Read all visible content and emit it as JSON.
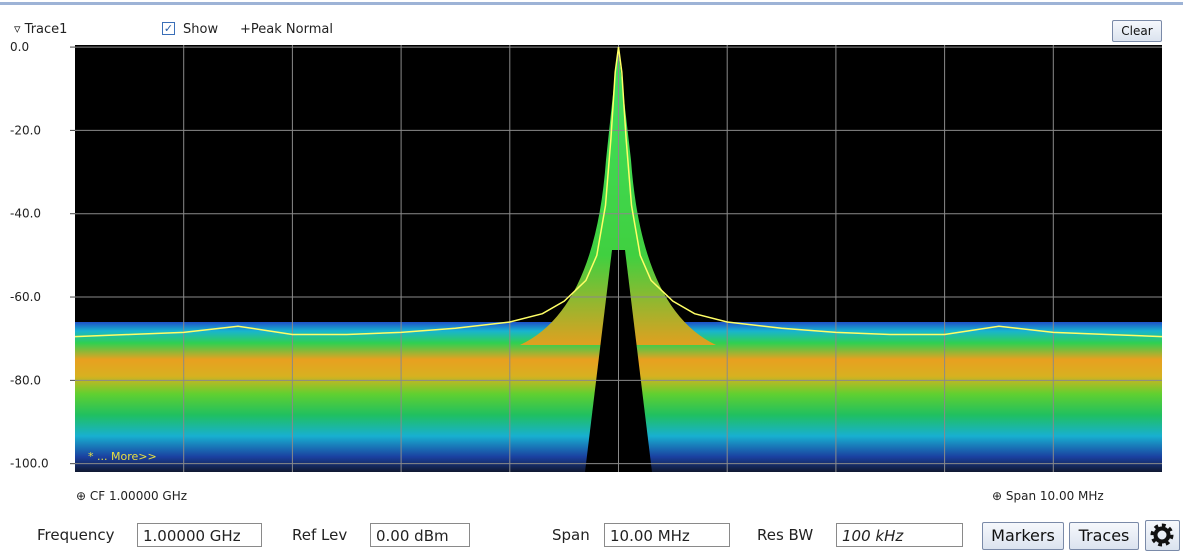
{
  "header": {
    "trace": "Trace1",
    "show": "Show",
    "mode": "+Peak Normal",
    "clear": "Clear"
  },
  "chart_data": {
    "type": "line",
    "annotation": "* ... More>>",
    "xlim": [
      995,
      1005
    ],
    "ylim": [
      -102,
      0.5
    ],
    "yticks": [
      {
        "value": 0,
        "label": "0.0"
      },
      {
        "value": -20,
        "label": "-20.0"
      },
      {
        "value": -40,
        "label": "-40.0"
      },
      {
        "value": -60,
        "label": "-60.0"
      },
      {
        "value": -80,
        "label": "-80.0"
      },
      {
        "value": -100,
        "label": "-100.0"
      }
    ],
    "grid": true,
    "x": [
      995,
      995.5,
      996,
      996.5,
      997,
      997.5,
      998,
      998.5,
      999,
      999.3,
      999.5,
      999.7,
      999.8,
      999.88,
      999.93,
      999.97,
      1000,
      1000.03,
      1000.07,
      1000.12,
      1000.2,
      1000.3,
      1000.5,
      1000.7,
      1001,
      1001.5,
      1002,
      1002.5,
      1003,
      1003.5,
      1004,
      1004.5,
      1005
    ],
    "series": [
      {
        "color": "#ffff66",
        "values": [
          -69.5,
          -69,
          -68.5,
          -67,
          -69,
          -69,
          -68.5,
          -67.5,
          -66,
          -64,
          -61,
          -56,
          -50,
          -38,
          -22,
          -6,
          0,
          -6,
          -22,
          -38,
          -50,
          -56,
          -61,
          -64,
          -66,
          -67.5,
          -68.5,
          -69,
          -69,
          -67,
          -68.5,
          -69,
          -69.5
        ]
      }
    ]
  },
  "footer": {
    "cf": "CF 1.00000 GHz",
    "span": "Span 10.00 MHz"
  },
  "controls": {
    "frequency": {
      "label": "Frequency",
      "value": "1.00000 GHz"
    },
    "ref_lev": {
      "label": "Ref Lev",
      "value": "0.00 dBm"
    },
    "span": {
      "label": "Span",
      "value": "10.00 MHz"
    },
    "res_bw": {
      "label": "Res BW",
      "value": "100 kHz"
    },
    "buttons": [
      "Markers",
      "Traces"
    ]
  }
}
